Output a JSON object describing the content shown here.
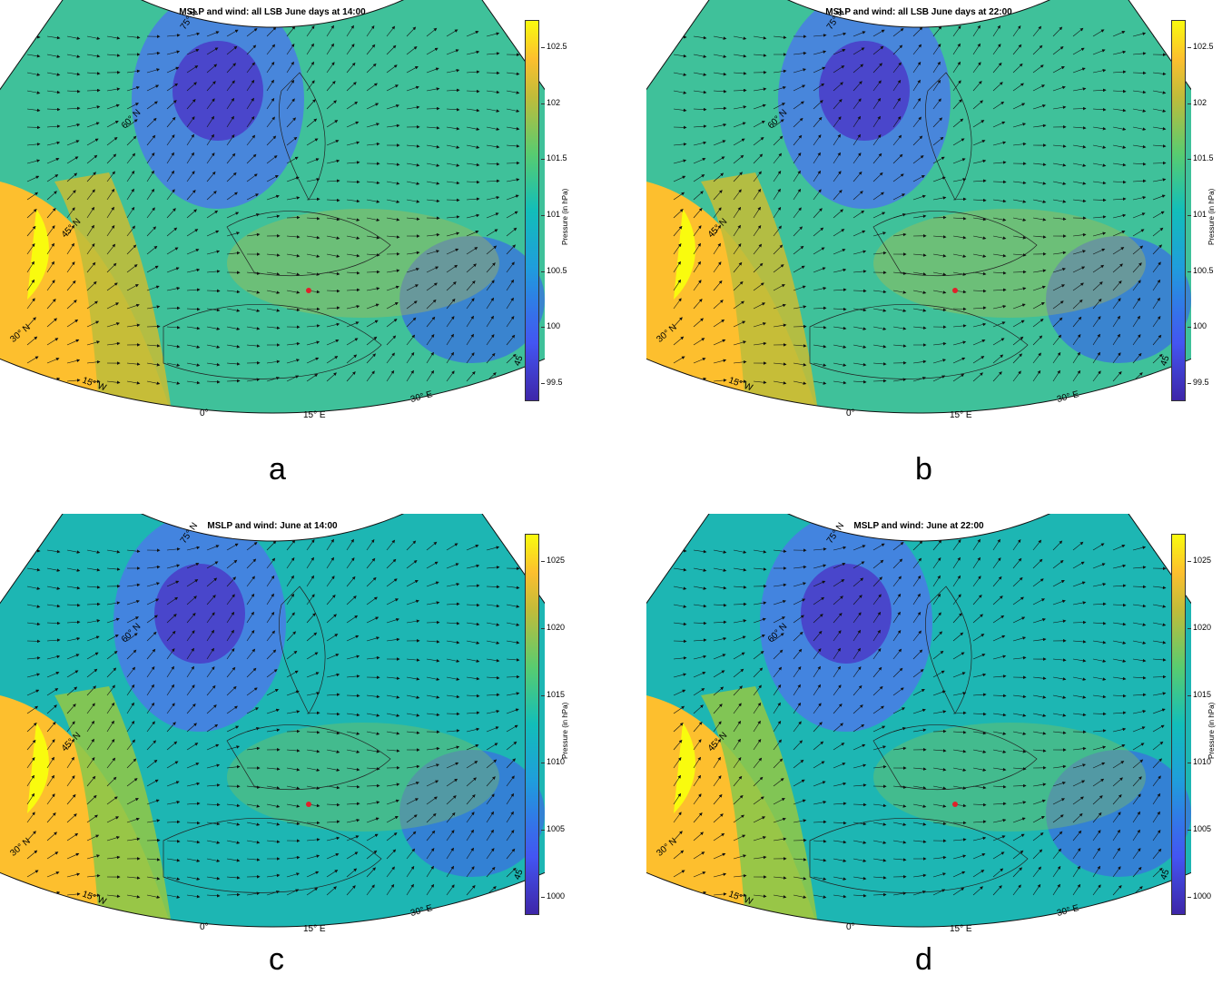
{
  "panels": [
    {
      "id": "a",
      "title": "MSLP and wind: all LSB June days at 14:00",
      "letter": "a",
      "colorbar": {
        "unit": "Pressure (in hPa)",
        "ticks": [
          "102.5",
          "102",
          "101.5",
          "101",
          "100.5",
          "100",
          "99.5"
        ]
      }
    },
    {
      "id": "b",
      "title": "MSLP and wind: all LSB June days at 22:00",
      "letter": "b",
      "colorbar": {
        "unit": "Pressure (in hPa)",
        "ticks": [
          "102.5",
          "102",
          "101.5",
          "101",
          "100.5",
          "100",
          "99.5"
        ]
      }
    },
    {
      "id": "c",
      "title": "MSLP and wind: June at 14:00",
      "letter": "c",
      "colorbar": {
        "unit": "Pressure (in hPa)",
        "ticks": [
          "1025",
          "1020",
          "1015",
          "1010",
          "1005",
          "1000"
        ]
      }
    },
    {
      "id": "d",
      "title": "MSLP and wind: June at 22:00",
      "letter": "d",
      "colorbar": {
        "unit": "Pressure (in hPa)",
        "ticks": [
          "1025",
          "1020",
          "1015",
          "1010",
          "1005",
          "1000"
        ]
      }
    }
  ],
  "latitudes": [
    "75° N",
    "60° N",
    "45° N",
    "30° N"
  ],
  "longitudes": [
    "15° W",
    "0°",
    "15° E",
    "30° E",
    "45"
  ],
  "colors": {
    "low": "#3e26a8",
    "mid": "#12beb9",
    "high": "#f9fb0e",
    "marker": "#e0202a"
  }
}
